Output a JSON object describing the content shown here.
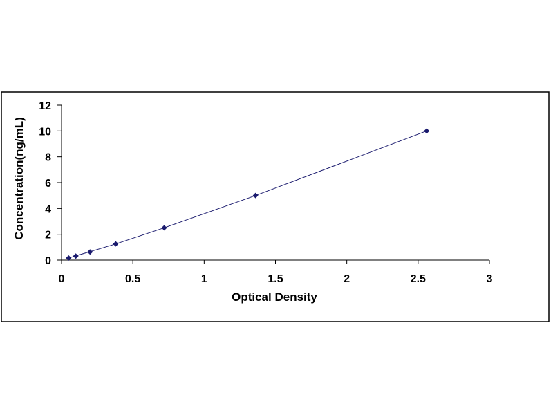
{
  "chart_data": {
    "type": "scatter",
    "title": "",
    "xlabel": "Optical Density",
    "ylabel": "Concentration(ng/mL)",
    "xlim": [
      0,
      3
    ],
    "ylim": [
      0,
      12
    ],
    "x_ticks": [
      "0",
      "0.5",
      "1",
      "1.5",
      "2",
      "2.5",
      "3"
    ],
    "y_ticks": [
      "0",
      "2",
      "4",
      "6",
      "8",
      "10",
      "12"
    ],
    "grid": false,
    "legend": "none",
    "series": [
      {
        "points": [
          {
            "x": 0.05,
            "y": 0.16
          },
          {
            "x": 0.1,
            "y": 0.31
          },
          {
            "x": 0.2,
            "y": 0.63
          },
          {
            "x": 0.38,
            "y": 1.25
          },
          {
            "x": 0.72,
            "y": 2.5
          },
          {
            "x": 1.36,
            "y": 5
          },
          {
            "x": 2.56,
            "y": 10
          }
        ],
        "trendline": {
          "type": "polynomial",
          "points": [
            [
              0.05,
              0.16
            ],
            [
              0.38,
              1.25
            ],
            [
              0.72,
              2.5
            ],
            [
              1.36,
              5
            ],
            [
              1.96,
              7.5
            ],
            [
              2.56,
              10
            ]
          ]
        }
      }
    ],
    "colors": {
      "marker": "#1a1a6e",
      "line": "#1a1a6e",
      "axis": "#000000",
      "frame": "#000000"
    }
  }
}
